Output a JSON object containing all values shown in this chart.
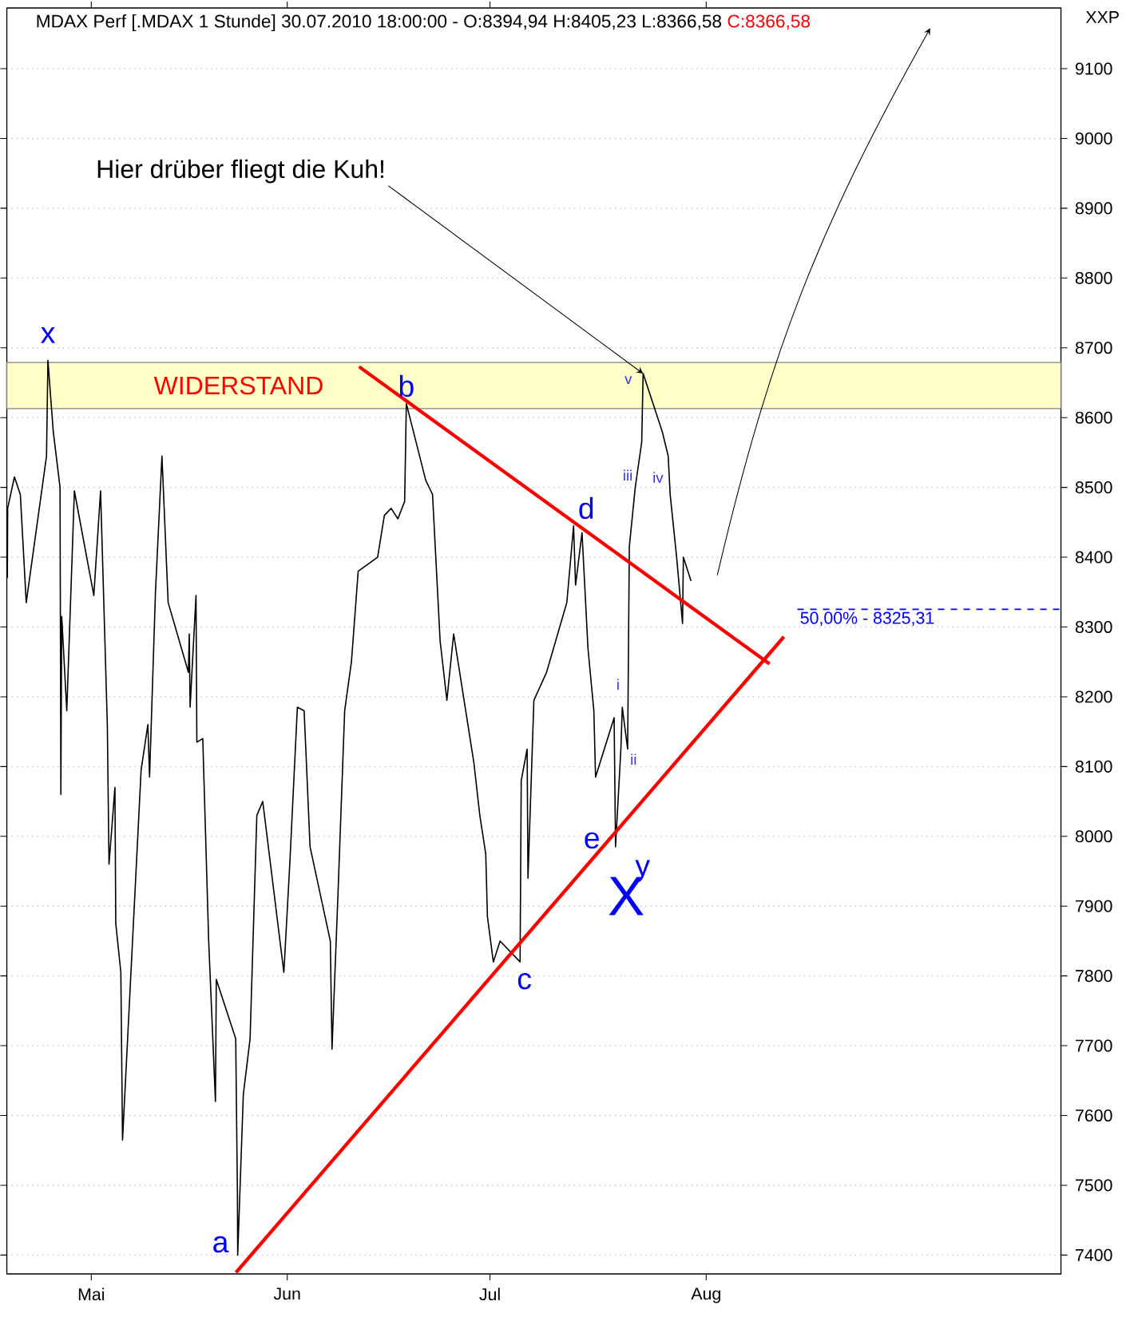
{
  "chart_data": {
    "type": "line",
    "title": "MDAX Perf [.MDAX  1 Stunde]  30.07.2010 18:00:00 - O:8394,94 H:8405,23 L:8366,58",
    "subtitle": "C:8366,58",
    "ylabel": "XXP",
    "xlim": [
      "2010-04-20T12:00",
      "2010-09-23T12:00"
    ],
    "ylim": [
      7373,
      9187
    ],
    "xticks": [
      {
        "value": "2010-05-03",
        "label": "Mai"
      },
      {
        "value": "2010-06-01",
        "label": "Jun"
      },
      {
        "value": "2010-07-01",
        "label": "Jul"
      },
      {
        "value": "2010-08-02",
        "label": "Aug"
      }
    ],
    "yticks": [
      7400,
      7500,
      7600,
      7700,
      7800,
      7900,
      8000,
      8100,
      8200,
      8300,
      8400,
      8500,
      8600,
      8700,
      8800,
      8900,
      9000,
      9100
    ],
    "grid": "y",
    "series": [
      {
        "color": "#000000",
        "x": [
          "2010-04-20T14:00",
          "2010-04-20T15:00",
          "2010-04-21T15:00",
          "2010-04-22T12:00",
          "2010-04-23T09:00",
          "2010-04-26T09:00",
          "2010-04-26T14:00",
          "2010-04-27T09:00",
          "2010-04-28T09:00",
          "2010-04-28T12:00",
          "2010-04-28T15:00",
          "2010-04-29T09:00",
          "2010-04-30T12:00",
          "2010-05-03T09:00",
          "2010-05-04T09:00",
          "2010-05-05T09:00",
          "2010-05-05T15:00",
          "2010-05-06T12:00",
          "2010-05-06T15:00",
          "2010-05-07T09:00",
          "2010-05-07T15:00",
          "2010-05-10T09:00",
          "2010-05-11T09:00",
          "2010-05-11T15:00",
          "2010-05-12T12:00",
          "2010-05-13T11:00",
          "2010-05-14T09:00",
          "2010-05-17T09:00",
          "2010-05-17T12:00",
          "2010-05-17T15:00",
          "2010-05-18T12:00",
          "2010-05-18T15:00",
          "2010-05-19T12:00",
          "2010-05-20T09:00",
          "2010-05-21T09:00",
          "2010-05-21T12:00",
          "2010-05-24T09:00",
          "2010-05-24T15:00",
          "2010-05-24T16:00",
          "2010-05-25T12:00",
          "2010-05-26T12:00",
          "2010-05-27T12:00",
          "2010-05-28T09:00",
          "2010-05-31T12:00",
          "2010-06-01T09:00",
          "2010-06-02T12:00",
          "2010-06-03T12:00",
          "2010-06-04T09:00",
          "2010-06-07T09:00",
          "2010-06-07T15:00",
          "2010-06-08T12:00",
          "2010-06-09T12:00",
          "2010-06-10T12:00",
          "2010-06-11T12:00",
          "2010-06-14T09:00",
          "2010-06-15T09:00",
          "2010-06-16T09:00",
          "2010-06-17T09:00",
          "2010-06-18T09:00",
          "2010-06-18T15:00",
          "2010-06-21T12:00",
          "2010-06-22T12:00",
          "2010-06-23T15:00",
          "2010-06-24T15:00",
          "2010-06-25T15:00",
          "2010-06-28T15:00",
          "2010-06-29T12:00",
          "2010-06-30T09:00",
          "2010-06-30T15:00",
          "2010-07-01T12:00",
          "2010-07-02T12:00",
          "2010-07-05T11:00",
          "2010-07-05T15:00",
          "2010-07-06T12:00",
          "2010-07-06T15:00",
          "2010-07-07T12:00",
          "2010-07-09T09:00",
          "2010-07-12T09:00",
          "2010-07-13T09:00",
          "2010-07-13T16:00",
          "2010-07-14T15:00",
          "2010-07-15T12:00",
          "2010-07-16T09:00",
          "2010-07-16T15:00",
          "2010-07-19T09:00",
          "2010-07-19T14:00",
          "2010-07-20T09:00",
          "2010-07-20T14:00",
          "2010-07-21T09:00",
          "2010-07-21T15:00",
          "2010-07-22T12:00",
          "2010-07-23T11:00",
          "2010-07-23T16:00",
          "2010-07-26T12:00",
          "2010-07-27T09:00",
          "2010-07-27T16:00",
          "2010-07-28T15:00",
          "2010-07-29T12:00",
          "2010-07-29T15:00",
          "2010-07-30T18:00"
        ],
        "values": [
          8370,
          8470,
          8515,
          8490,
          8335,
          8545,
          8682,
          8580,
          8500,
          8060,
          8315,
          8180,
          8495,
          8345,
          8495,
          8160,
          7960,
          8070,
          7875,
          7805,
          7565,
          8095,
          8160,
          8085,
          8350,
          8545,
          8335,
          8235,
          8290,
          8185,
          8345,
          8135,
          8140,
          7850,
          7620,
          7795,
          7710,
          7490,
          7400,
          7630,
          7710,
          8030,
          8050,
          7805,
          7960,
          8185,
          8180,
          7985,
          7850,
          7695,
          7915,
          8180,
          8250,
          8380,
          8400,
          8460,
          8470,
          8455,
          8480,
          8620,
          8510,
          8490,
          8280,
          8195,
          8290,
          8105,
          8030,
          7975,
          7885,
          7820,
          7850,
          7820,
          8080,
          8125,
          7940,
          8195,
          8235,
          8335,
          8445,
          8360,
          8435,
          8270,
          8180,
          8085,
          8170,
          7985,
          8125,
          8185,
          8125,
          8415,
          8500,
          8565,
          8663,
          8580,
          8545,
          8490,
          8400,
          8305,
          8400,
          8366
        ]
      },
      {
        "color": "#ff0000",
        "x": [
          "2010-06-11T15:00",
          "2010-08-11T09:00"
        ],
        "values": [
          8673,
          8247
        ]
      },
      {
        "color": "#ff0000",
        "x": [
          "2010-05-24T10:00",
          "2010-08-13T12:00"
        ],
        "values": [
          7375,
          8286
        ]
      }
    ],
    "bands": [
      {
        "axis": "y",
        "from": 8613,
        "to": 8679,
        "label": "WIDERSTAND",
        "color": "#ffffc8"
      }
    ],
    "ref_lines": [
      {
        "axis": "y",
        "value": 8325.31,
        "label": "8325,31",
        "color": "#0000ff",
        "line_style": "dashed"
      }
    ],
    "annotations": [
      {
        "text": "Hier drüber fliegt die Kuh!",
        "x": "2010-07-23T16:00",
        "y": 8663
      },
      {
        "text": "x",
        "x": "2010-04-26T14:00",
        "y": 8682
      },
      {
        "text": "a",
        "x": "2010-05-24T16:00",
        "y": 7400
      },
      {
        "text": "b",
        "x": "2010-06-18T15:00",
        "y": 8620
      },
      {
        "text": "c",
        "x": "2010-07-05T11:00",
        "y": 7820
      },
      {
        "text": "d",
        "x": "2010-07-13T09:00",
        "y": 8445
      },
      {
        "text": "e",
        "x": "2010-07-19T14:00",
        "y": 7985
      },
      {
        "text": "y",
        "x": "2010-07-19T14:00",
        "y": 7985
      },
      {
        "text": "X",
        "x": "2010-07-19T14:00",
        "y": 7985
      },
      {
        "text": "i",
        "x": "2010-07-20T14:00",
        "y": 8185
      },
      {
        "text": "ii",
        "x": "2010-07-21T09:00",
        "y": 8125
      },
      {
        "text": "iii",
        "x": "2010-07-22T12:00",
        "y": 8500
      },
      {
        "text": "iv",
        "x": "2010-07-27T16:00",
        "y": 8490
      },
      {
        "text": "v",
        "x": "2010-07-23T16:00",
        "y": 8663
      },
      "50,00% -"
    ]
  }
}
